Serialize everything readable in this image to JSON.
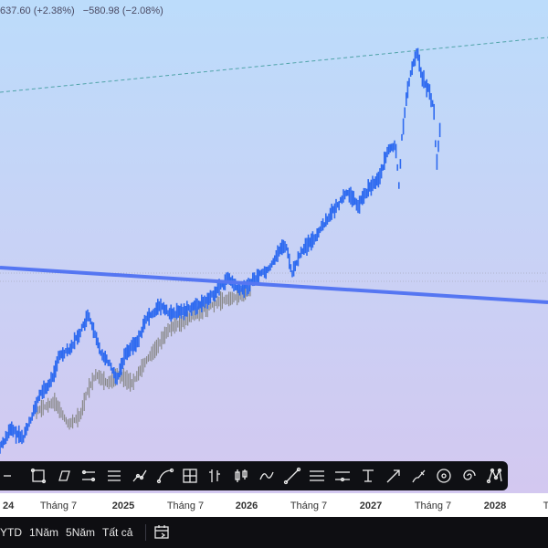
{
  "header": {
    "change_text": "637.60 (+2.38%)",
    "change2_text": "−580.98 (−2.08%)"
  },
  "colors": {
    "series": "#2f6bf0",
    "series_gray": "#8a8a8a",
    "trend_line": "#5576f2",
    "dashed_line": "#4fa3a8",
    "toolbar_bg": "#0f1014",
    "toolbar_icon": "#e8e8e8"
  },
  "time_axis": {
    "ticks": [
      {
        "label": "24",
        "year": true
      },
      {
        "label": "Tháng 7",
        "year": false
      },
      {
        "label": "2025",
        "year": true
      },
      {
        "label": "Tháng 7",
        "year": false
      },
      {
        "label": "2026",
        "year": true
      },
      {
        "label": "Tháng 7",
        "year": false
      },
      {
        "label": "2027",
        "year": true
      },
      {
        "label": "Tháng 7",
        "year": false
      },
      {
        "label": "2028",
        "year": true
      },
      {
        "label": "T",
        "year": false
      }
    ]
  },
  "toolbar": {
    "tools": [
      "line-icon",
      "rectangle-icon",
      "parallelogram-icon",
      "channel-icon",
      "fib-channel-icon",
      "path-icon",
      "curve-icon",
      "grid-icon",
      "bar-pattern-icon",
      "candles-icon",
      "projection-icon",
      "trend-line-icon",
      "horizontal-lines-icon",
      "ray-icon",
      "vertical-line-icon",
      "arrow-icon",
      "brush-icon",
      "circle-target-icon",
      "spiral-icon",
      "xabcd-pattern-icon"
    ]
  },
  "bottom_bar": {
    "ranges": [
      "YTD",
      "1Năm",
      "5Năm",
      "Tất cả"
    ],
    "date_range_icon": "calendar-range-icon"
  }
}
